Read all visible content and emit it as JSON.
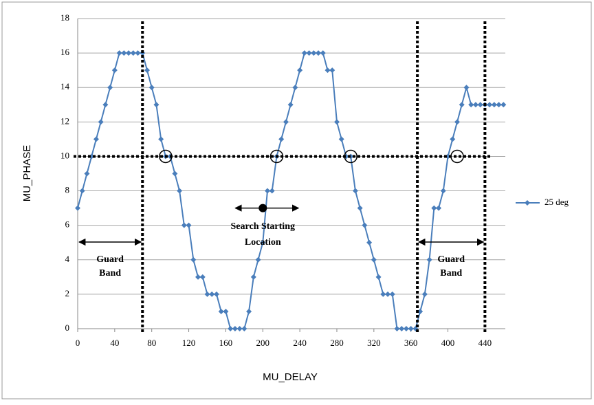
{
  "chart_data": {
    "type": "line",
    "x_label": "MU_DELAY",
    "y_label": "MU_PHASE",
    "x": [
      0,
      5,
      10,
      15,
      20,
      25,
      30,
      35,
      40,
      45,
      50,
      55,
      60,
      65,
      70,
      75,
      80,
      85,
      90,
      95,
      100,
      105,
      110,
      115,
      120,
      125,
      130,
      135,
      140,
      145,
      150,
      155,
      160,
      165,
      170,
      175,
      180,
      185,
      190,
      195,
      200,
      205,
      210,
      215,
      220,
      225,
      230,
      235,
      240,
      245,
      250,
      255,
      260,
      265,
      270,
      275,
      280,
      285,
      290,
      295,
      300,
      305,
      310,
      315,
      320,
      325,
      330,
      335,
      340,
      345,
      350,
      355,
      360,
      365,
      370,
      375,
      380,
      385,
      390,
      395,
      400,
      405,
      410,
      415,
      420,
      425,
      430,
      435,
      440,
      445,
      450,
      455,
      460
    ],
    "series": [
      {
        "name": "25 deg",
        "color": "#4a7ebb",
        "values": [
          7,
          8,
          9,
          10,
          11,
          12,
          13,
          14,
          15,
          16,
          16,
          16,
          16,
          16,
          16,
          15,
          14,
          13,
          11,
          10,
          10,
          9,
          8,
          6,
          6,
          4,
          3,
          3,
          2,
          2,
          2,
          1,
          1,
          0,
          0,
          0,
          0,
          1,
          3,
          4,
          5,
          8,
          8,
          10,
          11,
          12,
          13,
          14,
          15,
          16,
          16,
          16,
          16,
          16,
          15,
          15,
          12,
          11,
          10,
          10,
          8,
          7,
          6,
          5,
          4,
          3,
          2,
          2,
          2,
          0,
          0,
          0,
          0,
          0,
          1,
          2,
          4,
          7,
          7,
          8,
          10,
          11,
          12,
          13,
          14,
          13,
          13,
          13,
          13,
          13,
          13,
          13,
          13
        ]
      }
    ],
    "xlim": [
      0,
      462
    ],
    "ylim": [
      0,
      18
    ],
    "xticks": [
      0,
      40,
      80,
      120,
      160,
      200,
      240,
      280,
      320,
      360,
      400,
      440
    ],
    "yticks": [
      0,
      2,
      4,
      6,
      8,
      10,
      12,
      14,
      16,
      18
    ],
    "grid": true,
    "reference_lines": {
      "x": [
        70,
        367,
        440
      ],
      "y": 10
    },
    "crossings_x": [
      95,
      215,
      295,
      410
    ],
    "search_start": {
      "x": 200,
      "y": 7,
      "lines": [
        "Search Starting",
        "Location"
      ]
    },
    "guard_band": [
      "Guard",
      "Band"
    ],
    "legend": "right"
  }
}
